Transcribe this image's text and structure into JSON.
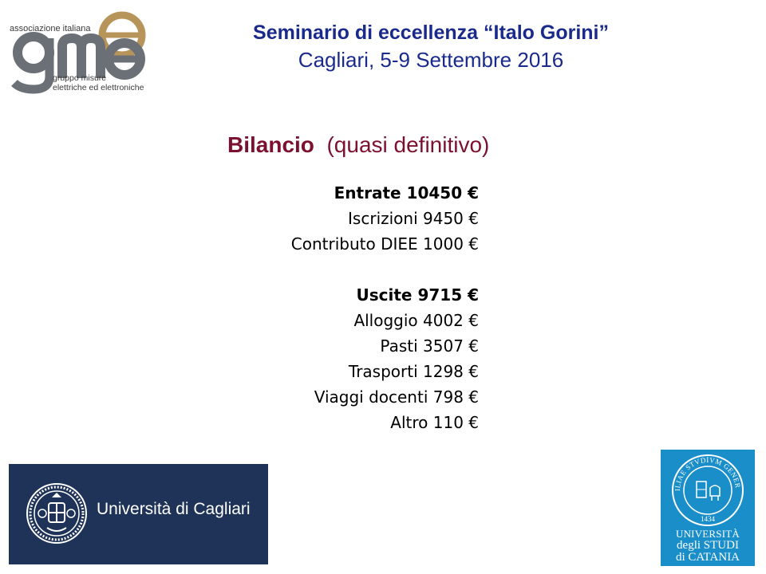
{
  "logos": {
    "gme": {
      "top_text": "associazione italiana",
      "letters": "gme",
      "bottom_line1": "gruppo misure",
      "bottom_line2": "elettriche ed elettroniche"
    },
    "cagliari": {
      "name": "Università di Cagliari"
    },
    "catania": {
      "line1": "UNIVERSITÀ",
      "line2": "degli STUDI",
      "line3": "di CATANIA",
      "seal_text": "SICILIAE STVDIVM GENERALE",
      "seal_year": "1434"
    }
  },
  "header": {
    "title": "Seminario di eccellenza “Italo Gorini”",
    "subtitle": "Cagliari, 5-9 Settembre 2016"
  },
  "section": {
    "title_bold": "Bilancio",
    "title_rest": "(quasi definitivo)"
  },
  "budget": {
    "income": {
      "heading": "Entrate 10450 €",
      "items": [
        "Iscrizioni 9450 €",
        "Contributo DIEE 1000 €"
      ]
    },
    "expenses": {
      "heading": "Uscite 9715 €",
      "items": [
        "Alloggio 4002 €",
        "Pasti 3507 €",
        "Trasporti 1298 €",
        "Viaggi docenti 798 €",
        "Altro 110 €"
      ]
    }
  },
  "colors": {
    "header_text": "#1a2a8c",
    "section_title": "#7b1030",
    "cagliari_bg": "#1f3358",
    "catania_bg": "#1a8ec9",
    "gme_gray": "#6b7076",
    "gme_gold": "#b7955a"
  }
}
